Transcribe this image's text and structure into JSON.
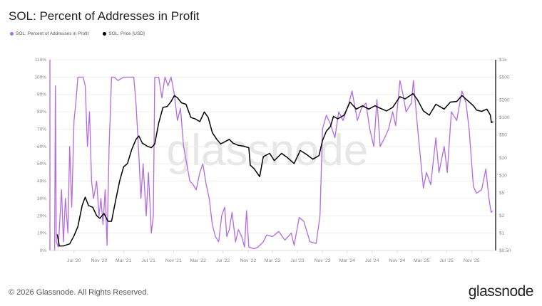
{
  "title": "SOL: Percent of Addresses in Profit",
  "footer": "© 2026 Glassnode. All Rights Reserved.",
  "logo_text": "glassnode",
  "watermark": "glassnode",
  "chart_data": {
    "type": "line",
    "title": "SOL: Percent of Addresses in Profit",
    "legend_position": "top-left",
    "grid": true,
    "x_range": [
      "2020-03-05",
      "2026-02-20"
    ],
    "x_ticks": [
      {
        "date": "2020-07-01",
        "label": "Jul '20"
      },
      {
        "date": "2020-11-01",
        "label": "Nov '20"
      },
      {
        "date": "2021-03-01",
        "label": "Mar '21"
      },
      {
        "date": "2021-07-01",
        "label": "Jul '21"
      },
      {
        "date": "2021-11-01",
        "label": "Nov '21"
      },
      {
        "date": "2022-03-01",
        "label": "Mar '22"
      },
      {
        "date": "2022-07-01",
        "label": "Jul '22"
      },
      {
        "date": "2022-11-01",
        "label": "Nov '22"
      },
      {
        "date": "2023-03-01",
        "label": "Mar '23"
      },
      {
        "date": "2023-07-01",
        "label": "Jul '23"
      },
      {
        "date": "2023-11-01",
        "label": "Nov '23"
      },
      {
        "date": "2024-03-01",
        "label": "Mar '24"
      },
      {
        "date": "2024-07-01",
        "label": "Jul '24"
      },
      {
        "date": "2024-11-01",
        "label": "Nov '24"
      },
      {
        "date": "2025-03-01",
        "label": "Mar '25"
      },
      {
        "date": "2025-07-01",
        "label": "Jul '25"
      },
      {
        "date": "2025-11-01",
        "label": "Nov '25"
      }
    ],
    "y_left": {
      "range": [
        0,
        110
      ],
      "scale": "linear",
      "ticks": [
        0,
        10,
        20,
        30,
        40,
        50,
        60,
        70,
        80,
        90,
        100,
        110
      ],
      "tick_labels": [
        "0%",
        "10%",
        "20%",
        "30%",
        "40%",
        "50%",
        "60%",
        "70%",
        "80%",
        "90%",
        "100%",
        "110%"
      ]
    },
    "y_right": {
      "range": [
        0.5,
        1000
      ],
      "scale": "log",
      "ticks": [
        0.5,
        1,
        2,
        5,
        10,
        20,
        50,
        100,
        200,
        500,
        1000
      ],
      "tick_labels": [
        "$0.50",
        "$1",
        "$2",
        "$5",
        "$10",
        "$20",
        "$50",
        "$100",
        "$200",
        "$500",
        "$1k"
      ]
    },
    "series": [
      {
        "name": "SOL: Percent of Addresses in Profit",
        "axis": "left",
        "color": "#b36ae2",
        "points": [
          [
            "2020-03-20",
            0
          ],
          [
            "2020-03-28",
            0
          ],
          [
            "2020-04-01",
            95
          ],
          [
            "2020-04-05",
            5
          ],
          [
            "2020-04-15",
            2
          ],
          [
            "2020-05-01",
            35
          ],
          [
            "2020-05-10",
            5
          ],
          [
            "2020-05-20",
            30
          ],
          [
            "2020-06-01",
            10
          ],
          [
            "2020-06-10",
            60
          ],
          [
            "2020-06-20",
            25
          ],
          [
            "2020-07-01",
            75
          ],
          [
            "2020-07-10",
            85
          ],
          [
            "2020-07-20",
            100
          ],
          [
            "2020-08-01",
            100
          ],
          [
            "2020-08-15",
            100
          ],
          [
            "2020-08-25",
            95
          ],
          [
            "2020-09-05",
            60
          ],
          [
            "2020-09-15",
            80
          ],
          [
            "2020-09-25",
            40
          ],
          [
            "2020-10-05",
            30
          ],
          [
            "2020-10-20",
            40
          ],
          [
            "2020-11-01",
            20
          ],
          [
            "2020-11-10",
            30
          ],
          [
            "2020-11-20",
            15
          ],
          [
            "2020-12-01",
            35
          ],
          [
            "2020-12-10",
            3
          ],
          [
            "2020-12-20",
            60
          ],
          [
            "2021-01-01",
            100
          ],
          [
            "2021-01-15",
            100
          ],
          [
            "2021-02-01",
            98
          ],
          [
            "2021-03-01",
            100
          ],
          [
            "2021-04-01",
            100
          ],
          [
            "2021-04-20",
            100
          ],
          [
            "2021-05-01",
            85
          ],
          [
            "2021-05-15",
            55
          ],
          [
            "2021-05-25",
            30
          ],
          [
            "2021-06-05",
            50
          ],
          [
            "2021-06-20",
            20
          ],
          [
            "2021-07-01",
            45
          ],
          [
            "2021-07-15",
            10
          ],
          [
            "2021-07-25",
            20
          ],
          [
            "2021-08-01",
            100
          ],
          [
            "2021-08-20",
            100
          ],
          [
            "2021-09-05",
            88
          ],
          [
            "2021-09-20",
            100
          ],
          [
            "2021-10-05",
            95
          ],
          [
            "2021-10-20",
            100
          ],
          [
            "2021-11-05",
            90
          ],
          [
            "2021-11-20",
            75
          ],
          [
            "2021-12-05",
            82
          ],
          [
            "2021-12-20",
            60
          ],
          [
            "2022-01-05",
            50
          ],
          [
            "2022-01-20",
            40
          ],
          [
            "2022-02-05",
            38
          ],
          [
            "2022-02-20",
            35
          ],
          [
            "2022-03-10",
            45
          ],
          [
            "2022-03-25",
            50
          ],
          [
            "2022-04-10",
            38
          ],
          [
            "2022-04-25",
            30
          ],
          [
            "2022-05-10",
            15
          ],
          [
            "2022-05-25",
            8
          ],
          [
            "2022-06-10",
            5
          ],
          [
            "2022-06-25",
            20
          ],
          [
            "2022-07-10",
            25
          ],
          [
            "2022-07-20",
            8
          ],
          [
            "2022-08-01",
            12
          ],
          [
            "2022-08-15",
            22
          ],
          [
            "2022-09-01",
            5
          ],
          [
            "2022-09-15",
            12
          ],
          [
            "2022-10-01",
            8
          ],
          [
            "2022-10-15",
            2
          ],
          [
            "2022-10-25",
            23
          ],
          [
            "2022-11-05",
            2
          ],
          [
            "2022-12-01",
            1
          ],
          [
            "2022-12-20",
            2
          ],
          [
            "2023-01-15",
            5
          ],
          [
            "2023-02-01",
            9
          ],
          [
            "2023-03-01",
            8
          ],
          [
            "2023-04-01",
            11
          ],
          [
            "2023-05-01",
            6
          ],
          [
            "2023-06-01",
            10
          ],
          [
            "2023-06-15",
            3
          ],
          [
            "2023-07-10",
            19
          ],
          [
            "2023-08-01",
            17
          ],
          [
            "2023-09-01",
            5
          ],
          [
            "2023-10-01",
            4
          ],
          [
            "2023-10-20",
            20
          ],
          [
            "2023-11-01",
            70
          ],
          [
            "2023-11-20",
            78
          ],
          [
            "2023-12-10",
            73
          ],
          [
            "2024-01-01",
            65
          ],
          [
            "2024-01-20",
            80
          ],
          [
            "2024-02-10",
            75
          ],
          [
            "2024-03-10",
            85
          ],
          [
            "2024-03-25",
            92
          ],
          [
            "2024-04-20",
            75
          ],
          [
            "2024-05-10",
            82
          ],
          [
            "2024-06-01",
            85
          ],
          [
            "2024-06-20",
            70
          ],
          [
            "2024-07-10",
            60
          ],
          [
            "2024-07-25",
            87
          ],
          [
            "2024-08-10",
            60
          ],
          [
            "2024-09-01",
            65
          ],
          [
            "2024-09-20",
            70
          ],
          [
            "2024-10-10",
            80
          ],
          [
            "2024-10-25",
            72
          ],
          [
            "2024-11-15",
            98
          ],
          [
            "2024-11-30",
            90
          ],
          [
            "2024-12-15",
            80
          ],
          [
            "2025-01-10",
            85
          ],
          [
            "2025-01-20",
            98
          ],
          [
            "2025-02-10",
            70
          ],
          [
            "2025-03-10",
            36
          ],
          [
            "2025-03-25",
            45
          ],
          [
            "2025-04-15",
            38
          ],
          [
            "2025-05-10",
            65
          ],
          [
            "2025-05-25",
            45
          ],
          [
            "2025-06-20",
            60
          ],
          [
            "2025-07-05",
            45
          ],
          [
            "2025-07-25",
            80
          ],
          [
            "2025-08-20",
            75
          ],
          [
            "2025-09-15",
            92
          ],
          [
            "2025-10-05",
            85
          ],
          [
            "2025-10-20",
            70
          ],
          [
            "2025-11-10",
            37
          ],
          [
            "2025-11-25",
            33
          ],
          [
            "2025-12-20",
            35
          ],
          [
            "2026-01-10",
            47
          ],
          [
            "2026-01-25",
            30
          ],
          [
            "2026-02-05",
            22
          ],
          [
            "2026-02-12",
            23
          ]
        ]
      },
      {
        "name": "SOL: Price [USD]",
        "axis": "right",
        "color": "#000000",
        "points": [
          [
            "2020-04-10",
            0.95
          ],
          [
            "2020-04-20",
            0.6
          ],
          [
            "2020-05-10",
            0.6
          ],
          [
            "2020-06-10",
            0.65
          ],
          [
            "2020-07-01",
            0.9
          ],
          [
            "2020-07-20",
            1.3
          ],
          [
            "2020-08-10",
            3.0
          ],
          [
            "2020-08-25",
            4.2
          ],
          [
            "2020-09-10",
            3.0
          ],
          [
            "2020-10-01",
            2.8
          ],
          [
            "2020-10-20",
            2.0
          ],
          [
            "2020-11-05",
            1.8
          ],
          [
            "2020-11-25",
            2.2
          ],
          [
            "2020-12-15",
            1.6
          ],
          [
            "2021-01-01",
            1.6
          ],
          [
            "2021-01-20",
            3.5
          ],
          [
            "2021-02-10",
            8
          ],
          [
            "2021-03-01",
            14
          ],
          [
            "2021-03-20",
            16
          ],
          [
            "2021-04-10",
            28
          ],
          [
            "2021-05-01",
            42
          ],
          [
            "2021-05-15",
            48
          ],
          [
            "2021-06-01",
            36
          ],
          [
            "2021-06-25",
            32
          ],
          [
            "2021-07-15",
            30
          ],
          [
            "2021-08-01",
            35
          ],
          [
            "2021-08-20",
            80
          ],
          [
            "2021-09-10",
            150
          ],
          [
            "2021-10-01",
            155
          ],
          [
            "2021-10-20",
            190
          ],
          [
            "2021-11-05",
            240
          ],
          [
            "2021-11-20",
            220
          ],
          [
            "2021-12-10",
            180
          ],
          [
            "2022-01-01",
            170
          ],
          [
            "2022-01-25",
            100
          ],
          [
            "2022-02-15",
            95
          ],
          [
            "2022-03-10",
            85
          ],
          [
            "2022-04-01",
            125
          ],
          [
            "2022-04-20",
            100
          ],
          [
            "2022-05-10",
            55
          ],
          [
            "2022-06-01",
            42
          ],
          [
            "2022-06-20",
            35
          ],
          [
            "2022-07-10",
            38
          ],
          [
            "2022-08-01",
            42
          ],
          [
            "2022-08-20",
            36
          ],
          [
            "2022-09-15",
            33
          ],
          [
            "2022-10-10",
            32
          ],
          [
            "2022-11-05",
            30
          ],
          [
            "2022-11-12",
            15
          ],
          [
            "2022-12-01",
            13
          ],
          [
            "2022-12-28",
            9.5
          ],
          [
            "2023-01-15",
            21
          ],
          [
            "2023-02-15",
            24
          ],
          [
            "2023-03-10",
            18
          ],
          [
            "2023-04-15",
            24
          ],
          [
            "2023-05-15",
            20
          ],
          [
            "2023-06-15",
            16
          ],
          [
            "2023-07-15",
            27
          ],
          [
            "2023-08-15",
            23
          ],
          [
            "2023-09-15",
            19
          ],
          [
            "2023-10-15",
            22
          ],
          [
            "2023-11-01",
            40
          ],
          [
            "2023-11-20",
            58
          ],
          [
            "2023-12-10",
            70
          ],
          [
            "2023-12-25",
            105
          ],
          [
            "2024-01-15",
            95
          ],
          [
            "2024-02-15",
            110
          ],
          [
            "2024-03-15",
            185
          ],
          [
            "2024-04-15",
            140
          ],
          [
            "2024-05-15",
            160
          ],
          [
            "2024-06-15",
            140
          ],
          [
            "2024-07-15",
            160
          ],
          [
            "2024-08-10",
            145
          ],
          [
            "2024-09-10",
            130
          ],
          [
            "2024-10-10",
            150
          ],
          [
            "2024-11-15",
            230
          ],
          [
            "2024-12-10",
            210
          ],
          [
            "2025-01-18",
            260
          ],
          [
            "2025-02-10",
            200
          ],
          [
            "2025-03-10",
            130
          ],
          [
            "2025-04-08",
            110
          ],
          [
            "2025-05-10",
            170
          ],
          [
            "2025-06-20",
            140
          ],
          [
            "2025-07-20",
            185
          ],
          [
            "2025-08-20",
            190
          ],
          [
            "2025-09-15",
            240
          ],
          [
            "2025-10-10",
            200
          ],
          [
            "2025-11-10",
            160
          ],
          [
            "2025-11-25",
            135
          ],
          [
            "2025-12-20",
            128
          ],
          [
            "2026-01-15",
            140
          ],
          [
            "2026-02-01",
            110
          ],
          [
            "2026-02-06",
            82
          ],
          [
            "2026-02-15",
            85
          ]
        ]
      }
    ]
  }
}
